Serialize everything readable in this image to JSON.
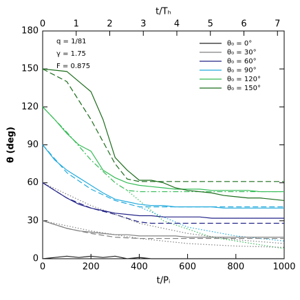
{
  "chart_data": {
    "type": "line",
    "xlabel": "t/Pᵢ",
    "ylabel": "θ (deg)",
    "x2label": "t/Tₕ",
    "annotations": [
      "q = 1/81",
      "γ = 1.75",
      "F = 0.875"
    ],
    "xlim": [
      0,
      1000
    ],
    "ylim": [
      0,
      180
    ],
    "x2lim": [
      0,
      7.2
    ],
    "xticks": [
      0,
      200,
      400,
      600,
      800,
      1000
    ],
    "yticks": [
      0,
      30,
      60,
      90,
      120,
      150,
      180
    ],
    "x2ticks": [
      0,
      1,
      2,
      3,
      4,
      5,
      6,
      7
    ],
    "legend": "upper right",
    "series": [
      {
        "name": "θ₀ = 0°",
        "color": "#222222",
        "x": [
          0,
          50,
          100,
          150,
          200,
          250,
          300,
          350,
          400,
          450,
          500,
          550,
          600,
          650,
          700,
          750,
          800,
          850,
          900,
          950,
          1000
        ],
        "values": [
          0,
          1,
          2,
          1,
          2,
          1,
          2,
          0,
          1,
          0,
          0,
          0,
          0,
          0,
          0,
          0,
          0,
          0,
          0,
          0,
          0
        ]
      },
      {
        "name": "θ₀ = 30°",
        "color": "#808080",
        "x": [
          0,
          50,
          100,
          150,
          200,
          250,
          300,
          350,
          400,
          450,
          500,
          550,
          600,
          650,
          700,
          750,
          800,
          850,
          900,
          950,
          1000
        ],
        "values": [
          30,
          27,
          24,
          22,
          21,
          20,
          19,
          19,
          18,
          18,
          18,
          18,
          17,
          17,
          17,
          17,
          17,
          17,
          17,
          17,
          17
        ]
      },
      {
        "name": "θ₀ = 60°",
        "color": "#222288",
        "x": [
          0,
          50,
          100,
          150,
          200,
          250,
          300,
          350,
          400,
          450,
          500,
          550,
          600,
          650,
          700,
          750,
          800,
          850,
          900,
          950,
          1000
        ],
        "values": [
          60,
          54,
          48,
          43,
          40,
          38,
          36,
          35,
          34,
          34,
          33,
          33,
          33,
          33,
          32,
          32,
          32,
          32,
          32,
          32,
          32
        ]
      },
      {
        "name": "θ₀ = 90°",
        "color": "#22aadd",
        "x": [
          0,
          50,
          100,
          150,
          200,
          250,
          300,
          350,
          400,
          450,
          500,
          550,
          600,
          650,
          700,
          750,
          800,
          850,
          900,
          950,
          1000
        ],
        "values": [
          90,
          78,
          70,
          64,
          58,
          52,
          47,
          45,
          43,
          42,
          42,
          41,
          41,
          41,
          41,
          40,
          40,
          40,
          40,
          40,
          40
        ]
      },
      {
        "name": "θ₀ = 120°",
        "color": "#33bb55",
        "x": [
          0,
          50,
          100,
          150,
          200,
          250,
          300,
          350,
          400,
          450,
          500,
          550,
          600,
          650,
          700,
          750,
          800,
          850,
          900,
          950,
          1000
        ],
        "values": [
          120,
          110,
          99,
          90,
          85,
          70,
          64,
          60,
          58,
          57,
          56,
          55,
          55,
          55,
          54,
          54,
          54,
          54,
          53,
          53,
          53
        ]
      },
      {
        "name": "θ₀ = 150°",
        "color": "#1a6b1a",
        "x": [
          0,
          50,
          100,
          150,
          200,
          250,
          300,
          350,
          400,
          450,
          500,
          550,
          600,
          650,
          700,
          750,
          800,
          850,
          900,
          950,
          1000
        ],
        "values": [
          150,
          149,
          148,
          140,
          132,
          110,
          80,
          70,
          62,
          62,
          60,
          56,
          54,
          53,
          52,
          50,
          49,
          48,
          48,
          47,
          46
        ]
      }
    ],
    "model_lines": [
      {
        "color": "#1a6b1a",
        "style": "dashed",
        "x": [
          0,
          100,
          200,
          300,
          350,
          400,
          1000
        ],
        "values": [
          150,
          140,
          110,
          75,
          63,
          61,
          61
        ]
      },
      {
        "color": "#33bb55",
        "style": "dashdot",
        "x": [
          0,
          100,
          200,
          300,
          350,
          400,
          1000
        ],
        "values": [
          120,
          100,
          78,
          60,
          54,
          53,
          53
        ]
      },
      {
        "color": "#33bb55",
        "style": "dotted",
        "x": [
          350,
          500,
          700,
          1000
        ],
        "values": [
          54,
          30,
          17,
          8
        ]
      },
      {
        "color": "#22aadd",
        "style": "dashed",
        "x": [
          0,
          100,
          200,
          300,
          400,
          1000
        ],
        "values": [
          90,
          68,
          55,
          46,
          41,
          41
        ]
      },
      {
        "color": "#22aadd",
        "style": "dotted",
        "x": [
          400,
          600,
          800,
          1000
        ],
        "values": [
          41,
          25,
          18,
          14
        ]
      },
      {
        "color": "#222288",
        "style": "dashed",
        "x": [
          0,
          100,
          200,
          300,
          400,
          450,
          1000
        ],
        "values": [
          60,
          48,
          40,
          35,
          29,
          28,
          28
        ]
      },
      {
        "color": "#808080",
        "style": "dotted",
        "x": [
          0,
          200,
          400,
          600,
          800,
          1000
        ],
        "values": [
          60,
          42,
          28,
          20,
          15,
          12
        ]
      },
      {
        "color": "#808080",
        "style": "dashed",
        "x": [
          0,
          100,
          200,
          300,
          400,
          1000
        ],
        "values": [
          30,
          24,
          20,
          17,
          16,
          16
        ]
      },
      {
        "color": "#808080",
        "style": "dotted",
        "x": [
          0,
          200,
          400,
          600,
          800,
          1000
        ],
        "values": [
          30,
          22,
          16,
          12,
          10,
          9
        ]
      }
    ]
  }
}
